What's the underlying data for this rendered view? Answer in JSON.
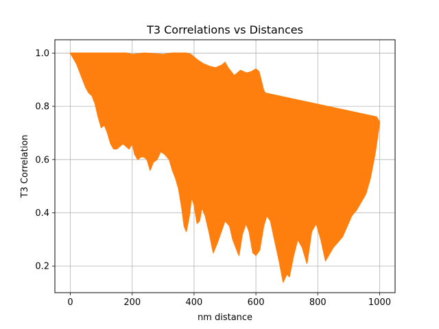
{
  "chart_data": {
    "type": "area",
    "title": "T3 Correlations vs Distances",
    "xlabel": "nm distance",
    "ylabel": "T3 Correlation",
    "xlim": [
      -50,
      1050
    ],
    "ylim": [
      0.1,
      1.05
    ],
    "xticks": [
      0,
      200,
      400,
      600,
      800,
      1000
    ],
    "yticks": [
      0.2,
      0.4,
      0.6,
      0.8,
      1.0
    ],
    "xtick_labels": [
      "0",
      "200",
      "400",
      "600",
      "800",
      "1000"
    ],
    "ytick_labels": [
      "0.2",
      "0.4",
      "0.6",
      "0.8",
      "1.0"
    ],
    "grid": true,
    "series": [
      {
        "color": "#ff7f0e",
        "upper": [
          {
            "x": 0,
            "y": 1.0
          },
          {
            "x": 180,
            "y": 1.0
          },
          {
            "x": 200,
            "y": 0.995
          },
          {
            "x": 240,
            "y": 1.0
          },
          {
            "x": 300,
            "y": 0.995
          },
          {
            "x": 330,
            "y": 1.0
          },
          {
            "x": 375,
            "y": 1.0
          },
          {
            "x": 390,
            "y": 0.995
          },
          {
            "x": 410,
            "y": 0.975
          },
          {
            "x": 430,
            "y": 0.96
          },
          {
            "x": 450,
            "y": 0.95
          },
          {
            "x": 470,
            "y": 0.945
          },
          {
            "x": 490,
            "y": 0.955
          },
          {
            "x": 500,
            "y": 0.965
          },
          {
            "x": 510,
            "y": 0.945
          },
          {
            "x": 530,
            "y": 0.915
          },
          {
            "x": 550,
            "y": 0.935
          },
          {
            "x": 570,
            "y": 0.925
          },
          {
            "x": 585,
            "y": 0.93
          },
          {
            "x": 600,
            "y": 0.94
          },
          {
            "x": 610,
            "y": 0.93
          },
          {
            "x": 625,
            "y": 0.86
          },
          {
            "x": 630,
            "y": 0.85
          },
          {
            "x": 990,
            "y": 0.76
          },
          {
            "x": 1000,
            "y": 0.74
          }
        ],
        "lower": [
          {
            "x": 1000,
            "y": 0.74
          },
          {
            "x": 985,
            "y": 0.62
          },
          {
            "x": 970,
            "y": 0.53
          },
          {
            "x": 955,
            "y": 0.47
          },
          {
            "x": 940,
            "y": 0.44
          },
          {
            "x": 925,
            "y": 0.41
          },
          {
            "x": 910,
            "y": 0.39
          },
          {
            "x": 895,
            "y": 0.35
          },
          {
            "x": 880,
            "y": 0.31
          },
          {
            "x": 865,
            "y": 0.29
          },
          {
            "x": 850,
            "y": 0.27
          },
          {
            "x": 835,
            "y": 0.24
          },
          {
            "x": 825,
            "y": 0.22
          },
          {
            "x": 810,
            "y": 0.3
          },
          {
            "x": 795,
            "y": 0.36
          },
          {
            "x": 780,
            "y": 0.33
          },
          {
            "x": 765,
            "y": 0.21
          },
          {
            "x": 750,
            "y": 0.27
          },
          {
            "x": 735,
            "y": 0.3
          },
          {
            "x": 722,
            "y": 0.24
          },
          {
            "x": 708,
            "y": 0.16
          },
          {
            "x": 700,
            "y": 0.17
          },
          {
            "x": 688,
            "y": 0.14
          },
          {
            "x": 675,
            "y": 0.22
          },
          {
            "x": 660,
            "y": 0.3
          },
          {
            "x": 647,
            "y": 0.37
          },
          {
            "x": 635,
            "y": 0.39
          },
          {
            "x": 625,
            "y": 0.35
          },
          {
            "x": 612,
            "y": 0.26
          },
          {
            "x": 600,
            "y": 0.24
          },
          {
            "x": 590,
            "y": 0.25
          },
          {
            "x": 578,
            "y": 0.33
          },
          {
            "x": 568,
            "y": 0.36
          },
          {
            "x": 556,
            "y": 0.32
          },
          {
            "x": 545,
            "y": 0.24
          },
          {
            "x": 535,
            "y": 0.27
          },
          {
            "x": 525,
            "y": 0.3
          },
          {
            "x": 515,
            "y": 0.35
          },
          {
            "x": 500,
            "y": 0.37
          },
          {
            "x": 488,
            "y": 0.33
          },
          {
            "x": 476,
            "y": 0.29
          },
          {
            "x": 462,
            "y": 0.25
          },
          {
            "x": 448,
            "y": 0.33
          },
          {
            "x": 436,
            "y": 0.39
          },
          {
            "x": 425,
            "y": 0.42
          },
          {
            "x": 418,
            "y": 0.37
          },
          {
            "x": 410,
            "y": 0.36
          },
          {
            "x": 400,
            "y": 0.43
          },
          {
            "x": 392,
            "y": 0.46
          },
          {
            "x": 385,
            "y": 0.39
          },
          {
            "x": 375,
            "y": 0.33
          },
          {
            "x": 368,
            "y": 0.35
          },
          {
            "x": 360,
            "y": 0.42
          },
          {
            "x": 350,
            "y": 0.49
          },
          {
            "x": 340,
            "y": 0.53
          },
          {
            "x": 330,
            "y": 0.56
          },
          {
            "x": 320,
            "y": 0.6
          },
          {
            "x": 305,
            "y": 0.62
          },
          {
            "x": 292,
            "y": 0.63
          },
          {
            "x": 280,
            "y": 0.6
          },
          {
            "x": 268,
            "y": 0.59
          },
          {
            "x": 258,
            "y": 0.56
          },
          {
            "x": 248,
            "y": 0.6
          },
          {
            "x": 238,
            "y": 0.61
          },
          {
            "x": 228,
            "y": 0.61
          },
          {
            "x": 218,
            "y": 0.6
          },
          {
            "x": 208,
            "y": 0.62
          },
          {
            "x": 200,
            "y": 0.66
          },
          {
            "x": 190,
            "y": 0.64
          },
          {
            "x": 180,
            "y": 0.65
          },
          {
            "x": 170,
            "y": 0.66
          },
          {
            "x": 160,
            "y": 0.65
          },
          {
            "x": 150,
            "y": 0.64
          },
          {
            "x": 140,
            "y": 0.64
          },
          {
            "x": 130,
            "y": 0.66
          },
          {
            "x": 120,
            "y": 0.7
          },
          {
            "x": 110,
            "y": 0.73
          },
          {
            "x": 100,
            "y": 0.72
          },
          {
            "x": 90,
            "y": 0.76
          },
          {
            "x": 80,
            "y": 0.81
          },
          {
            "x": 70,
            "y": 0.84
          },
          {
            "x": 60,
            "y": 0.85
          },
          {
            "x": 50,
            "y": 0.87
          },
          {
            "x": 40,
            "y": 0.9
          },
          {
            "x": 30,
            "y": 0.93
          },
          {
            "x": 20,
            "y": 0.96
          },
          {
            "x": 10,
            "y": 0.98
          },
          {
            "x": 0,
            "y": 1.0
          }
        ]
      }
    ]
  }
}
